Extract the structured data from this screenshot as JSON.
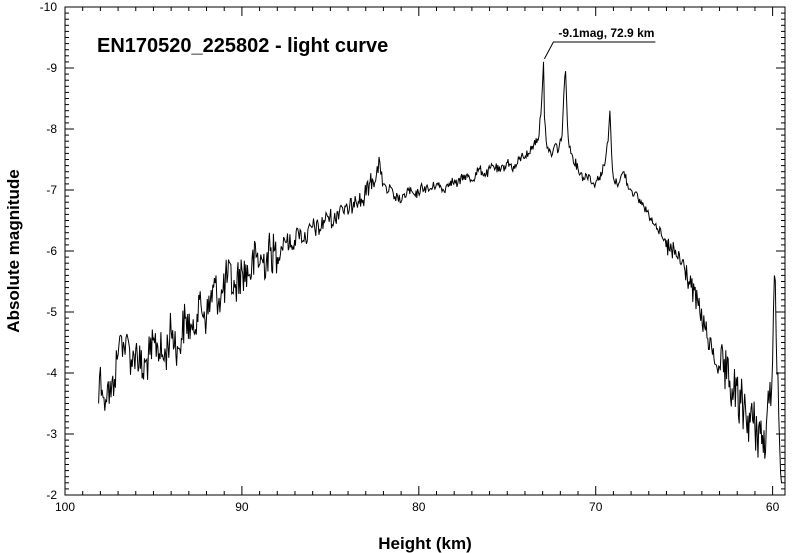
{
  "chart_data": {
    "type": "line",
    "title": "EN170520_225802 - light curve",
    "xlabel": "Height (km)",
    "ylabel": "Absolute magnitude",
    "xlim": [
      100,
      59.3
    ],
    "ylim": [
      -2,
      -10
    ],
    "x_ticks": [
      "100",
      "90",
      "80",
      "70",
      "60"
    ],
    "y_ticks": [
      "-2",
      "-3",
      "-4",
      "-5",
      "-6",
      "-7",
      "-8",
      "-9",
      "-10"
    ],
    "grid": false,
    "line_color": "#000000",
    "annotation": {
      "text": "-9.1mag, 72.9 km",
      "x": 72.9,
      "y": -9.1
    },
    "series": [
      {
        "x": [
          98.1,
          98.0,
          97.8,
          97.6,
          97.4,
          97.2,
          97.0,
          96.8,
          96.6,
          96.4,
          96.2,
          96.0,
          95.6,
          95.2,
          94.8,
          94.4,
          94.0,
          93.6,
          93.2,
          92.8,
          92.4,
          92.0,
          91.6,
          91.2,
          90.8,
          90.4,
          90.0,
          89.6,
          89.2,
          88.8,
          88.4,
          88.0,
          87.6,
          87.2,
          86.8,
          86.4,
          86.0,
          85.6,
          85.2,
          84.8,
          84.4,
          84.0,
          83.6,
          83.2,
          82.8,
          82.4,
          82.2,
          82.0,
          81.8,
          81.6,
          81.4,
          81.2,
          81.0,
          80.6,
          80.2,
          79.8,
          79.4,
          79.0,
          78.6,
          78.2,
          77.8,
          77.4,
          77.0,
          76.6,
          76.2,
          75.8,
          75.4,
          75.0,
          74.6,
          74.2,
          73.8,
          73.5,
          73.2,
          73.05,
          72.95,
          72.9,
          72.8,
          72.7,
          72.5,
          72.3,
          72.1,
          71.9,
          71.8,
          71.7,
          71.6,
          71.5,
          71.3,
          71.0,
          70.7,
          70.4,
          70.1,
          69.8,
          69.5,
          69.3,
          69.2,
          69.1,
          69.0,
          68.8,
          68.6,
          68.4,
          68.2,
          68.0,
          67.8,
          67.6,
          67.3,
          67.0,
          66.6,
          66.2,
          65.8,
          65.4,
          65.0,
          64.6,
          64.2,
          63.8,
          63.4,
          63.0,
          62.6,
          62.2,
          61.8,
          61.4,
          61.0,
          60.7,
          60.4,
          60.2,
          60.0,
          59.9,
          59.7,
          59.6,
          59.5
        ],
        "y": [
          -3.5,
          -4.1,
          -3.6,
          -3.8,
          -3.6,
          -3.9,
          -4.3,
          -4.6,
          -4.3,
          -4.5,
          -4.1,
          -4.4,
          -4.0,
          -4.3,
          -4.5,
          -4.2,
          -4.7,
          -4.4,
          -4.9,
          -4.7,
          -5.2,
          -4.9,
          -5.4,
          -5.2,
          -5.6,
          -5.4,
          -5.7,
          -5.6,
          -5.9,
          -5.8,
          -6.0,
          -5.9,
          -6.2,
          -6.1,
          -6.3,
          -6.2,
          -6.4,
          -6.35,
          -6.6,
          -6.5,
          -6.75,
          -6.6,
          -6.9,
          -6.8,
          -7.1,
          -7.25,
          -7.45,
          -7.1,
          -6.95,
          -7.05,
          -6.85,
          -6.9,
          -6.8,
          -7.0,
          -6.9,
          -7.05,
          -7.0,
          -7.1,
          -7.0,
          -7.15,
          -7.1,
          -7.25,
          -7.15,
          -7.35,
          -7.25,
          -7.4,
          -7.3,
          -7.45,
          -7.35,
          -7.55,
          -7.6,
          -7.75,
          -7.9,
          -8.5,
          -9.1,
          -8.2,
          -7.8,
          -7.7,
          -7.55,
          -7.75,
          -7.65,
          -7.9,
          -8.6,
          -8.95,
          -8.1,
          -7.7,
          -7.55,
          -7.35,
          -7.2,
          -7.25,
          -7.1,
          -7.2,
          -7.4,
          -7.8,
          -8.3,
          -7.6,
          -7.2,
          -7.1,
          -7.2,
          -7.3,
          -7.1,
          -7.0,
          -6.95,
          -6.85,
          -6.75,
          -6.6,
          -6.45,
          -6.2,
          -6.0,
          -5.9,
          -5.75,
          -5.4,
          -5.1,
          -4.7,
          -4.3,
          -4.1,
          -3.9,
          -3.7,
          -3.5,
          -3.3,
          -3.1,
          -3.0,
          -2.7,
          -3.5,
          -4.2,
          -5.6,
          -4.0,
          -2.8,
          -2.2
        ]
      }
    ]
  }
}
